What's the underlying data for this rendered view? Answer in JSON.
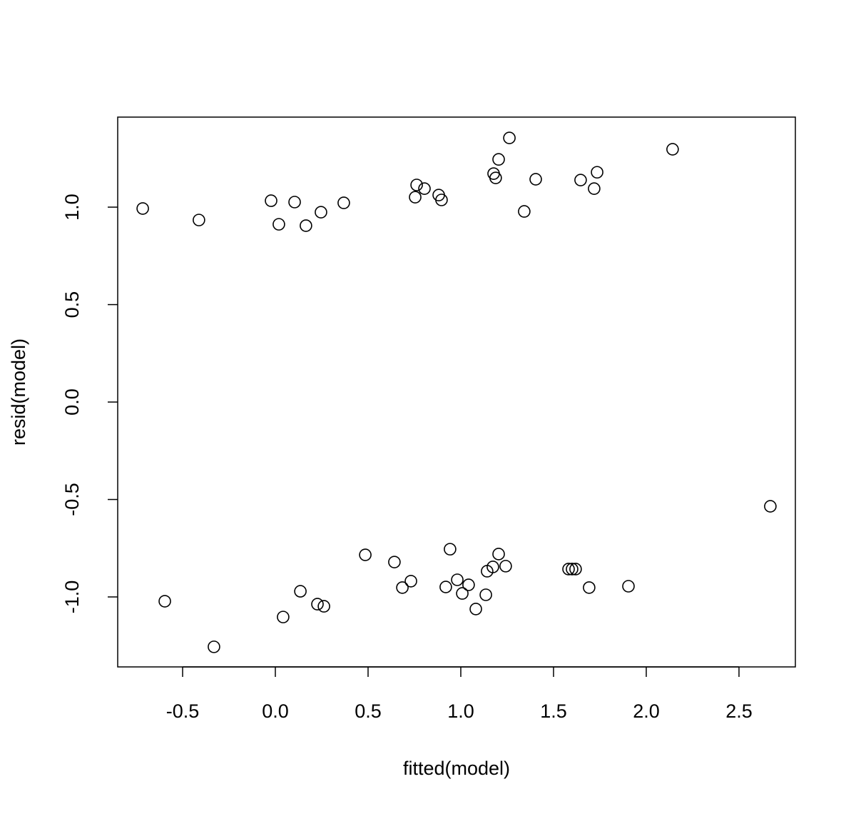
{
  "chart_data": {
    "type": "scatter",
    "x_label": "fitted(model)",
    "y_label": "resid(model)",
    "color": "#000000",
    "xlim": [
      -0.85,
      2.804
    ],
    "ylim": [
      -1.359,
      1.462
    ],
    "xticks": [
      -0.5,
      {
        "value": 0,
        "label": "0.0"
      },
      0.5,
      {
        "value": 1,
        "label": "1.0"
      },
      1.5,
      {
        "value": 2,
        "label": "2.0"
      },
      2.5
    ],
    "yticks": [
      {
        "value": -1,
        "label": "-1.0"
      },
      -0.5,
      {
        "value": 0,
        "label": "0.0"
      },
      0.5,
      {
        "value": 1,
        "label": "1.0"
      }
    ],
    "x": [
      -0.715,
      -0.412,
      -0.023,
      0.019,
      0.104,
      0.165,
      0.246,
      0.369,
      0.762,
      0.754,
      0.804,
      0.881,
      0.896,
      1.177,
      1.188,
      1.204,
      1.262,
      1.342,
      1.404,
      1.646,
      1.719,
      1.735,
      2.142,
      2.669,
      -0.596,
      -0.331,
      0.042,
      0.135,
      0.227,
      0.262,
      0.485,
      0.642,
      0.685,
      0.731,
      0.919,
      0.942,
      0.981,
      1.008,
      1.042,
      1.081,
      1.135,
      1.142,
      1.173,
      1.204,
      1.242,
      1.581,
      1.6,
      1.619,
      1.692,
      1.904
    ],
    "y": [
      0.993,
      0.934,
      1.033,
      0.912,
      1.026,
      0.905,
      0.974,
      1.022,
      1.114,
      1.051,
      1.095,
      1.062,
      1.037,
      1.172,
      1.15,
      1.245,
      1.355,
      0.978,
      1.143,
      1.139,
      1.095,
      1.179,
      1.297,
      -0.535,
      -1.022,
      -1.256,
      -1.103,
      -0.971,
      -1.037,
      -1.048,
      -0.784,
      -0.821,
      -0.952,
      -0.919,
      -0.949,
      -0.755,
      -0.912,
      -0.982,
      -0.938,
      -1.062,
      -0.989,
      -0.868,
      -0.846,
      -0.78,
      -0.842,
      -0.857,
      -0.857,
      -0.857,
      -0.952,
      -0.945
    ]
  }
}
